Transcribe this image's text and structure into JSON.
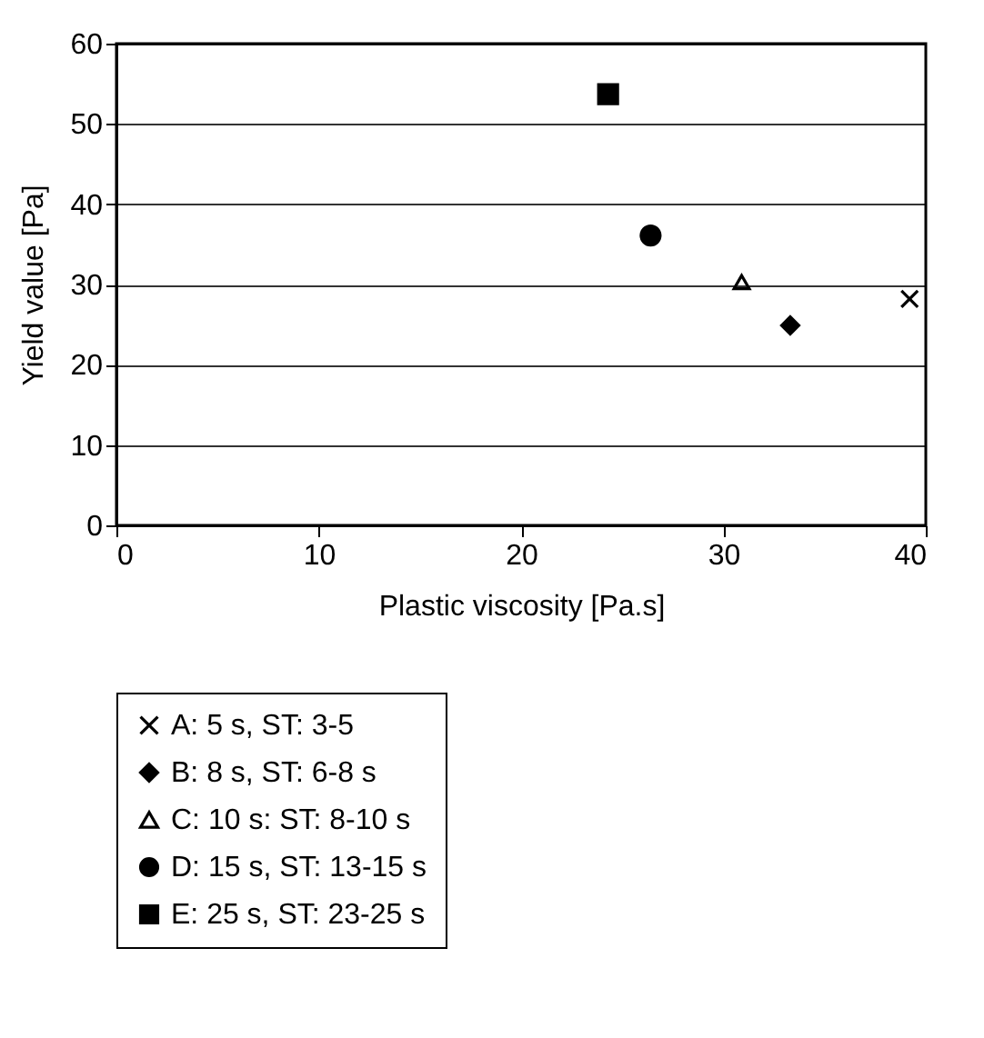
{
  "chart_data": {
    "type": "scatter",
    "xlabel": "Plastic viscosity [Pa.s]",
    "ylabel": "Yield value [Pa]",
    "xlim": [
      0,
      40
    ],
    "xticks": [
      0,
      10,
      20,
      30,
      40
    ],
    "ylim": [
      0,
      60
    ],
    "yticks": [
      0,
      10,
      20,
      30,
      40,
      50,
      60
    ],
    "grid": "y",
    "legend": "bottom",
    "series": [
      {
        "name": "A: 5 s, ST: 3-5",
        "color": "#000000",
        "marker": "cross",
        "x": [
          39.2
        ],
        "values": [
          28.2
        ]
      },
      {
        "name": "B: 8 s, ST: 6-8 s",
        "color": "#000000",
        "marker": "diamond",
        "x": [
          33.3
        ],
        "values": [
          24.9
        ]
      },
      {
        "name": "C: 10 s: ST: 8-10 s",
        "color": "#000000",
        "marker": "triangle",
        "x": [
          30.9
        ],
        "values": [
          30.3
        ]
      },
      {
        "name": "D: 15 s, ST: 13-15 s",
        "color": "#000000",
        "marker": "circle",
        "x": [
          26.4
        ],
        "values": [
          36.1
        ]
      },
      {
        "name": "E: 25 s, ST: 23-25 s",
        "color": "#000000",
        "marker": "square",
        "x": [
          24.3
        ],
        "values": [
          53.7
        ]
      }
    ]
  }
}
